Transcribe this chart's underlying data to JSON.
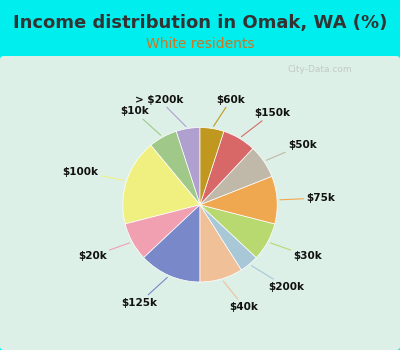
{
  "title": "Income distribution in Omak, WA (%)",
  "subtitle": "White residents",
  "watermark": "© City-Data.com",
  "background_outer": "#00EEEE",
  "background_inner_top": "#d8f0e8",
  "background_inner_bottom": "#e8f8f0",
  "labels": [
    "> $200k",
    "$10k",
    "$100k",
    "$20k",
    "$125k",
    "$40k",
    "$200k",
    "$30k",
    "$75k",
    "$50k",
    "$150k",
    "$60k"
  ],
  "values": [
    5,
    6,
    18,
    8,
    13,
    9,
    4,
    8,
    10,
    7,
    7,
    5
  ],
  "colors": [
    "#b0a0d0",
    "#a0c888",
    "#f0f080",
    "#f0a0b0",
    "#7888c8",
    "#f0c098",
    "#a8c8d8",
    "#b8d870",
    "#f0a850",
    "#c0b8a8",
    "#d86868",
    "#c09820"
  ],
  "startangle": 90,
  "title_fontsize": 13,
  "subtitle_fontsize": 10,
  "label_fontsize": 7.5,
  "title_color": "#333333",
  "subtitle_color": "#cc7722"
}
